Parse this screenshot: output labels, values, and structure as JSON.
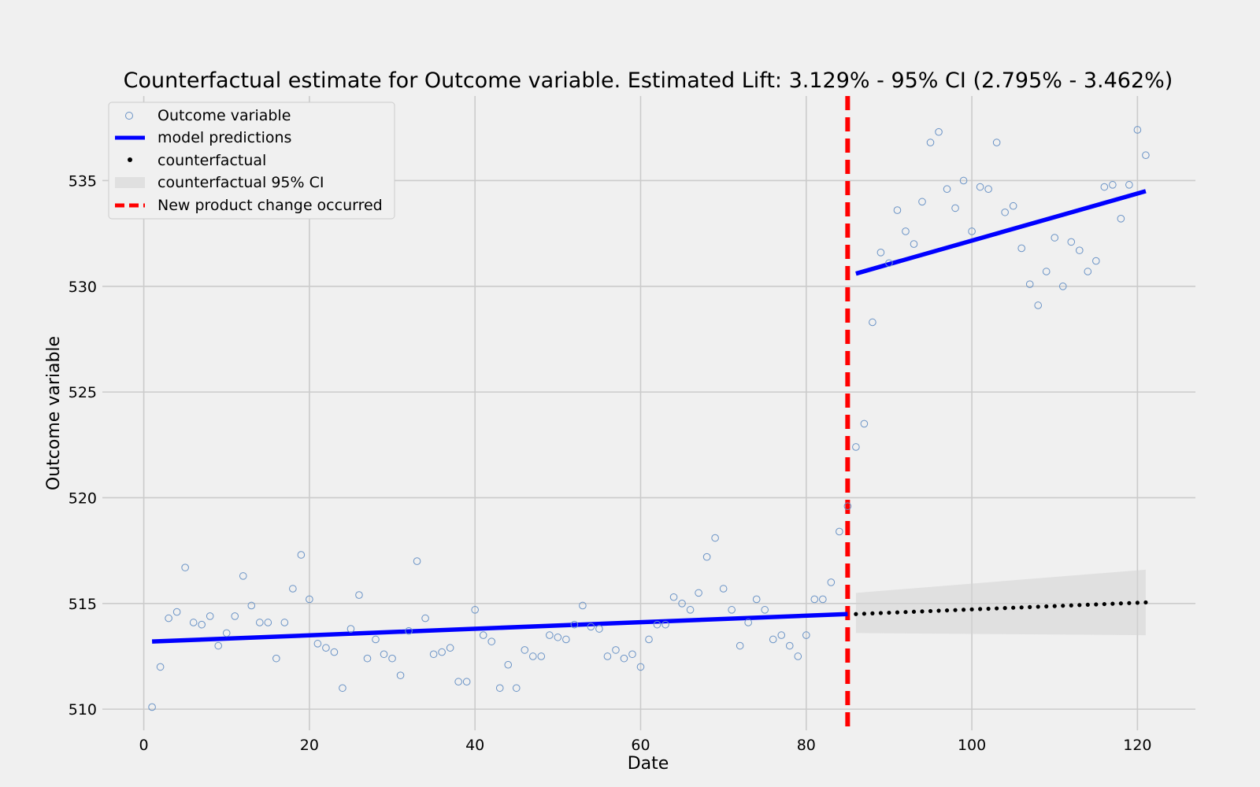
{
  "chart_data": {
    "type": "scatter",
    "title": "Counterfactual estimate for Outcome variable. Estimated Lift: 3.129% - 95% CI (2.795% - 3.462%)",
    "xlabel": "Date",
    "ylabel": "Outcome variable",
    "xlim": [
      -5,
      127
    ],
    "ylim": [
      509,
      539
    ],
    "x_ticks": [
      0,
      20,
      40,
      60,
      80,
      100,
      120
    ],
    "y_ticks": [
      510,
      515,
      520,
      525,
      530,
      535
    ],
    "grid": true,
    "legend_position": "top-left",
    "legend": [
      {
        "label": "Outcome variable",
        "kind": "circle"
      },
      {
        "label": "model predictions",
        "kind": "line"
      },
      {
        "label": "counterfactual",
        "kind": "dot"
      },
      {
        "label": "counterfactual 95% CI",
        "kind": "band"
      },
      {
        "label": "New product change occurred",
        "kind": "dashed"
      }
    ],
    "colors": {
      "observed": "#6a93c6",
      "model": "#0000ff",
      "counterfactual": "#000000",
      "ci": "#d3d3d3",
      "intervention": "#ff0000",
      "grid": "#cbcbcb",
      "background": "#f0f0f0"
    },
    "intervention_x": 85,
    "series": [
      {
        "name": "Outcome variable",
        "points": [
          [
            1,
            510.1
          ],
          [
            2,
            512.0
          ],
          [
            3,
            514.3
          ],
          [
            4,
            514.6
          ],
          [
            5,
            516.7
          ],
          [
            6,
            514.1
          ],
          [
            7,
            514.0
          ],
          [
            8,
            514.4
          ],
          [
            9,
            513.0
          ],
          [
            10,
            513.6
          ],
          [
            11,
            514.4
          ],
          [
            12,
            516.3
          ],
          [
            13,
            514.9
          ],
          [
            14,
            514.1
          ],
          [
            15,
            514.1
          ],
          [
            16,
            512.4
          ],
          [
            17,
            514.1
          ],
          [
            18,
            515.7
          ],
          [
            19,
            517.3
          ],
          [
            20,
            515.2
          ],
          [
            21,
            513.1
          ],
          [
            22,
            512.9
          ],
          [
            23,
            512.7
          ],
          [
            24,
            511.0
          ],
          [
            25,
            513.8
          ],
          [
            26,
            515.4
          ],
          [
            27,
            512.4
          ],
          [
            28,
            513.3
          ],
          [
            29,
            512.6
          ],
          [
            30,
            512.4
          ],
          [
            31,
            511.6
          ],
          [
            32,
            513.7
          ],
          [
            33,
            517.0
          ],
          [
            34,
            514.3
          ],
          [
            35,
            512.6
          ],
          [
            36,
            512.7
          ],
          [
            37,
            512.9
          ],
          [
            38,
            511.3
          ],
          [
            39,
            511.3
          ],
          [
            40,
            514.7
          ],
          [
            41,
            513.5
          ],
          [
            42,
            513.2
          ],
          [
            43,
            511.0
          ],
          [
            44,
            512.1
          ],
          [
            45,
            511.0
          ],
          [
            46,
            512.8
          ],
          [
            47,
            512.5
          ],
          [
            48,
            512.5
          ],
          [
            49,
            513.5
          ],
          [
            50,
            513.4
          ],
          [
            51,
            513.3
          ],
          [
            52,
            514.0
          ],
          [
            53,
            514.9
          ],
          [
            54,
            513.9
          ],
          [
            55,
            513.8
          ],
          [
            56,
            512.5
          ],
          [
            57,
            512.8
          ],
          [
            58,
            512.4
          ],
          [
            59,
            512.6
          ],
          [
            60,
            512.0
          ],
          [
            61,
            513.3
          ],
          [
            62,
            514.0
          ],
          [
            63,
            514.0
          ],
          [
            64,
            515.3
          ],
          [
            65,
            515.0
          ],
          [
            66,
            514.7
          ],
          [
            67,
            515.5
          ],
          [
            68,
            517.2
          ],
          [
            69,
            518.1
          ],
          [
            70,
            515.7
          ],
          [
            71,
            514.7
          ],
          [
            72,
            513.0
          ],
          [
            73,
            514.1
          ],
          [
            74,
            515.2
          ],
          [
            75,
            514.7
          ],
          [
            76,
            513.3
          ],
          [
            77,
            513.5
          ],
          [
            78,
            513.0
          ],
          [
            79,
            512.5
          ],
          [
            80,
            513.5
          ],
          [
            81,
            515.2
          ],
          [
            82,
            515.2
          ],
          [
            83,
            516.0
          ],
          [
            84,
            518.4
          ],
          [
            85,
            519.6
          ],
          [
            86,
            522.4
          ],
          [
            87,
            523.5
          ],
          [
            88,
            528.3
          ],
          [
            89,
            531.6
          ],
          [
            90,
            531.1
          ],
          [
            91,
            533.6
          ],
          [
            92,
            532.6
          ],
          [
            93,
            532.0
          ],
          [
            94,
            534.0
          ],
          [
            95,
            536.8
          ],
          [
            96,
            537.3
          ],
          [
            97,
            534.6
          ],
          [
            98,
            533.7
          ],
          [
            99,
            535.0
          ],
          [
            100,
            532.6
          ],
          [
            101,
            534.7
          ],
          [
            102,
            534.6
          ],
          [
            103,
            536.8
          ],
          [
            104,
            533.5
          ],
          [
            105,
            533.8
          ],
          [
            106,
            531.8
          ],
          [
            107,
            530.1
          ],
          [
            108,
            529.1
          ],
          [
            109,
            530.7
          ],
          [
            110,
            532.3
          ],
          [
            111,
            530.0
          ],
          [
            112,
            532.1
          ],
          [
            113,
            531.7
          ],
          [
            114,
            530.7
          ],
          [
            115,
            531.2
          ],
          [
            116,
            534.7
          ],
          [
            117,
            534.8
          ],
          [
            118,
            533.2
          ],
          [
            119,
            534.8
          ],
          [
            120,
            537.4
          ],
          [
            121,
            536.2
          ]
        ]
      },
      {
        "name": "model predictions",
        "segments": [
          [
            [
              1,
              513.2
            ],
            [
              85,
              514.5
            ]
          ],
          [
            [
              86,
              530.6
            ],
            [
              121,
              534.5
            ]
          ]
        ]
      },
      {
        "name": "counterfactual",
        "x_start": 86,
        "x_end": 121,
        "y_start": 514.5,
        "y_end": 515.05
      },
      {
        "name": "counterfactual 95% CI",
        "lower": [
          [
            86,
            513.6
          ],
          [
            121,
            513.5
          ]
        ],
        "upper": [
          [
            86,
            515.5
          ],
          [
            121,
            516.6
          ]
        ]
      }
    ]
  }
}
